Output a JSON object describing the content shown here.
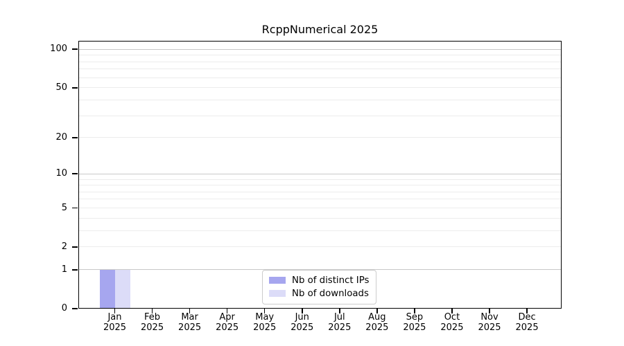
{
  "chart_data": {
    "type": "bar",
    "title": "RcppNumerical 2025",
    "year_label": "2025",
    "months": [
      "Jan",
      "Feb",
      "Mar",
      "Apr",
      "May",
      "Jun",
      "Jul",
      "Aug",
      "Sep",
      "Oct",
      "Nov",
      "Dec"
    ],
    "series": [
      {
        "name": "Nb of distinct IPs",
        "color": "#a6a6ef",
        "values": [
          1,
          0,
          0,
          0,
          0,
          0,
          0,
          0,
          0,
          0,
          0,
          0
        ]
      },
      {
        "name": "Nb of downloads",
        "color": "#dcdcf8",
        "values": [
          1,
          0,
          0,
          0,
          0,
          0,
          0,
          0,
          0,
          0,
          0,
          0
        ]
      }
    ],
    "y_axis": {
      "scale": "log1p",
      "labeled_ticks": [
        0,
        1,
        2,
        5,
        10,
        20,
        50,
        100
      ],
      "major_gridlines": [
        1,
        10,
        100
      ],
      "minor_gridlines": [
        2,
        3,
        4,
        5,
        6,
        7,
        8,
        9,
        20,
        30,
        40,
        50,
        60,
        70,
        80,
        90
      ],
      "ylim": [
        0,
        117
      ]
    },
    "legend": {
      "position": "lower-center",
      "entries": [
        "Nb of distinct IPs",
        "Nb of downloads"
      ]
    },
    "grid": true
  },
  "colors": {
    "background": "#ffffff",
    "axis": "#000000",
    "major_grid": "#c8c8c8",
    "minor_grid": "#ececec",
    "legend_border": "#cccccc",
    "text": "#000000"
  }
}
